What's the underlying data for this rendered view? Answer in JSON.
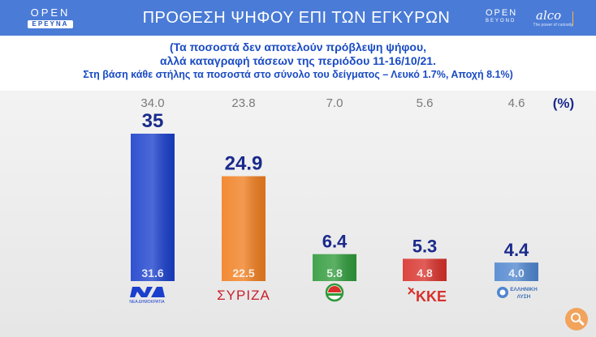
{
  "header": {
    "brand_left_top": "OPEN",
    "brand_left_bottom": "ΕΡΕΥΝΑ",
    "title": "ΠΡΟΘΕΣΗ ΨΗΦΟΥ ΕΠΙ ΤΩΝ ΕΓΚΥΡΩΝ",
    "brand_right_top": "OPEN",
    "brand_right_sub": "BEYOND",
    "partner": "alco",
    "partner_tag": "The power of curiosity"
  },
  "subtitle": {
    "line1": "(Τα ποσοστά δεν αποτελούν πρόβλεψη ψήφου,",
    "line2": "αλλά καταγραφή τάσεων της περιόδου 11-16/10/21.",
    "line3": "Στη βάση κάθε στήλης τα ποσοστά στο σύνολο του δείγματος – Λευκό 1.7%, Αποχή 8.1%)"
  },
  "chart_data": {
    "type": "bar",
    "title": "ΠΡΟΘΕΣΗ ΨΗΦΟΥ ΕΠΙ ΤΩΝ ΕΓΚΥΡΩΝ",
    "unit_label": "(%)",
    "ylim": [
      0,
      40
    ],
    "categories": [
      "ΝΔ",
      "ΣΥΡΙΖΑ",
      "ΚΙΝΑΛ",
      "ΚΚΕ",
      "ΕΛΛΗΝΙΚΗ ΛΥΣΗ"
    ],
    "series": [
      {
        "values": [
          35,
          24.9,
          6.4,
          5.3,
          4.4
        ]
      },
      {
        "values": [
          31.6,
          22.5,
          5.8,
          4.8,
          4.0
        ]
      }
    ],
    "previous": [
      "34.0",
      "23.8",
      "7.0",
      "5.6",
      "4.6"
    ],
    "colors": [
      "#1a3fcc",
      "#f07e1f",
      "#2e9a3a",
      "#d8302a",
      "#4f86cf"
    ],
    "logos": {
      "nd_text": "ΝΕΑ ΔΗΜΟΚΡΑΤΙΑ",
      "syriza": "ΣΥΡΙΖΑ",
      "kke": "ΚΚΕ",
      "el_line1": "ΕΛΛΗΝΙΚΗ",
      "el_line2": "ΛΥΣΗ"
    }
  }
}
